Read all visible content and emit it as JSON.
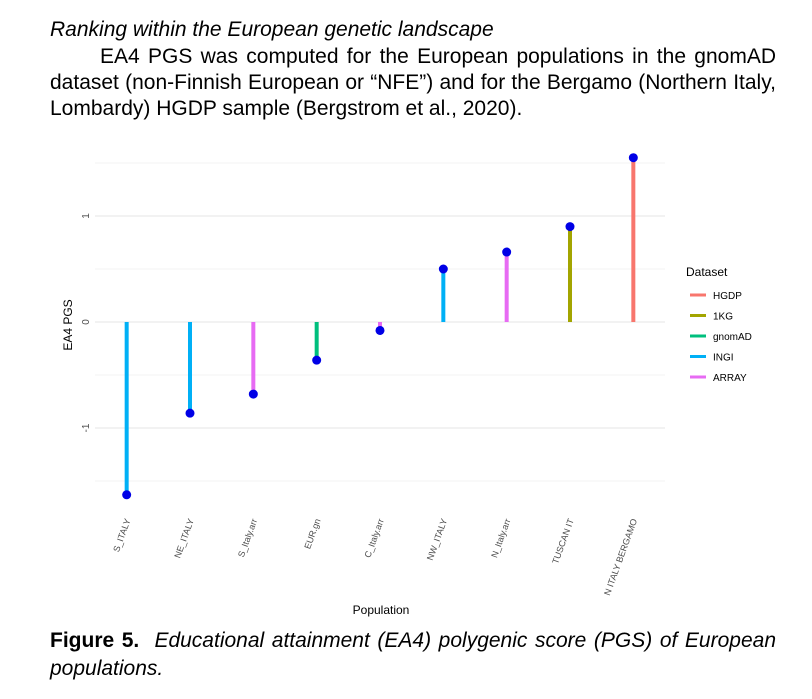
{
  "heading": "Ranking within the European genetic landscape",
  "intro": "EA4 PGS was computed for the European populations in the gnomAD dataset (non-Finnish European or “NFE”) and for the Bergamo (Northern Italy, Lombardy) HGDP sample (Bergstrom et al., 2020).",
  "caption": {
    "label": "Figure 5.",
    "text": "Educational attainment (EA4) polygenic score (PGS) of European populations."
  },
  "chart_data": {
    "type": "lollipop",
    "xlabel": "Population",
    "ylabel": "EA4 PGS",
    "ylim": [
      -1.72,
      1.6
    ],
    "yticks": [
      -1,
      0,
      1
    ],
    "grid": true,
    "legend_title": "Dataset",
    "legend_position": "right",
    "datasets": [
      {
        "name": "HGDP",
        "color": "#f8766d"
      },
      {
        "name": "1KG",
        "color": "#a3a500"
      },
      {
        "name": "gnomAD",
        "color": "#00bf7d"
      },
      {
        "name": "INGI",
        "color": "#00b0f6"
      },
      {
        "name": "ARRAY",
        "color": "#e76bf3"
      }
    ],
    "point_color": "#0000e6",
    "points": [
      {
        "population": "S_ITALY",
        "dataset": "INGI",
        "value": -1.63
      },
      {
        "population": "NE_ITALY",
        "dataset": "INGI",
        "value": -0.86
      },
      {
        "population": "S_Italy.arr",
        "dataset": "ARRAY",
        "value": -0.68
      },
      {
        "population": "EUR.gn",
        "dataset": "gnomAD",
        "value": -0.36
      },
      {
        "population": "C_Italy.arr",
        "dataset": "ARRAY",
        "value": -0.08
      },
      {
        "population": "NW_ITALY",
        "dataset": "INGI",
        "value": 0.5
      },
      {
        "population": "N_Italy.arr",
        "dataset": "ARRAY",
        "value": 0.66
      },
      {
        "population": "TUSCAN IT",
        "dataset": "1KG",
        "value": 0.9
      },
      {
        "population": "N ITALY BERGAMO",
        "dataset": "HGDP",
        "value": 1.55
      }
    ]
  }
}
